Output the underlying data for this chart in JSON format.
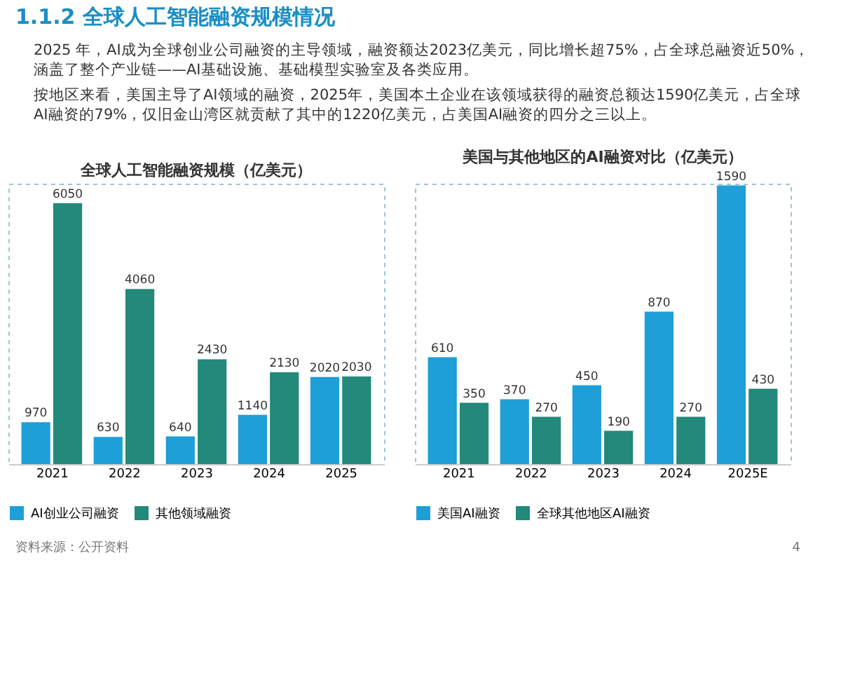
{
  "chart_data": [
    {
      "type": "other",
      "title": "1.1.2 全球人工智能融资规模情况",
      "annotations": [
        "2025 年，AI成为全球创业公司融资的主导领域，融资额达2023亿美元，同比增长超75%，占全球总融资近50%，涵盖了整个产业链——AI基础设施、基础模型实验室及各类应用。",
        "按地区来看，美国主导了AI领域的融资，2025年，美国本土企业在该领域获得的融资总额达1590亿美元，占全球AI融资的79%，仅旧金山湾区就贡献了其中的1220亿美元，占美国AI融资的四分之三以上。",
        "资料来源：公开资料",
        "4"
      ]
    },
    {
      "type": "bar",
      "title": "全球人工智能融资规模（亿美元）",
      "categories": [
        "2021",
        "2022",
        "2023",
        "2024",
        "2025"
      ],
      "data_labels": true,
      "legend": "bottom",
      "grid": false,
      "series": [
        {
          "name": "AI创业公司融资",
          "color": "#1e9fd8",
          "values": [
            970,
            630,
            640,
            1140,
            2020
          ]
        },
        {
          "name": "其他领域融资",
          "color": "#23897a",
          "values": [
            6050,
            4060,
            2430,
            2130,
            2030
          ]
        }
      ]
    },
    {
      "type": "bar",
      "title": "美国与其他地区的AI融资对比（亿美元）",
      "categories": [
        "2021",
        "2022",
        "2023",
        "2024",
        "2025E"
      ],
      "data_labels": true,
      "legend": "bottom",
      "grid": false,
      "series": [
        {
          "name": "美国AI融资",
          "color": "#1e9fd8",
          "values": [
            610,
            370,
            450,
            870,
            1590
          ]
        },
        {
          "name": "全球其他地区AI融资",
          "color": "#23897a",
          "values": [
            350,
            270,
            190,
            270,
            430
          ]
        }
      ]
    }
  ]
}
